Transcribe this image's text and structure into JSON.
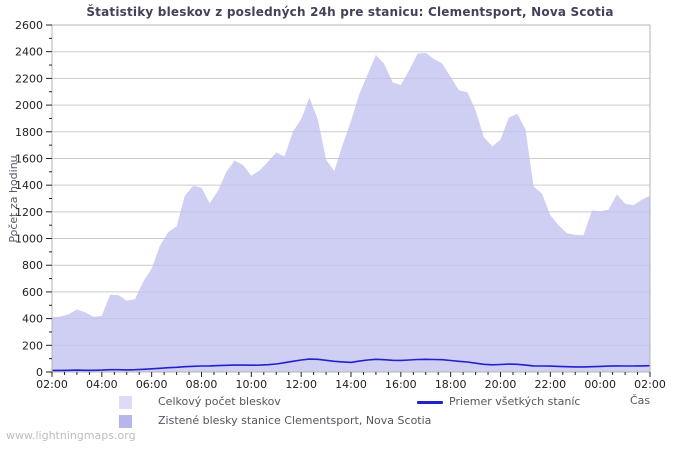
{
  "page": {
    "watermark": "www.lightningmaps.org"
  },
  "chart_data": {
    "type": "area",
    "title": "Štatistiky bleskov z posledných 24h pre stanicu: Clementsport, Nova Scotia",
    "xlabel": "Čas",
    "ylabel": "Počet za hodinu",
    "x_start_hour": 2,
    "x_end_hour": 26,
    "x_tick_labels": [
      "02:00",
      "04:00",
      "06:00",
      "08:00",
      "10:00",
      "12:00",
      "14:00",
      "16:00",
      "18:00",
      "20:00",
      "22:00",
      "00:00",
      "02:00"
    ],
    "ylim": [
      0,
      2600
    ],
    "y_major_step": 200,
    "y_minor_step": 100,
    "grid": true,
    "grid_color": "#cccccc",
    "border_color": "#b5b5b5",
    "tick_color": "#222222",
    "legend_position": "bottom",
    "x": [
      2,
      2.33,
      2.67,
      3,
      3.33,
      3.67,
      4,
      4.33,
      4.67,
      5,
      5.33,
      5.67,
      6,
      6.33,
      6.67,
      7,
      7.33,
      7.67,
      8,
      8.33,
      8.67,
      9,
      9.33,
      9.67,
      10,
      10.33,
      10.67,
      11,
      11.33,
      11.67,
      12,
      12.33,
      12.67,
      13,
      13.33,
      13.67,
      14,
      14.33,
      14.67,
      15,
      15.33,
      15.67,
      16,
      16.33,
      16.67,
      17,
      17.33,
      17.67,
      18,
      18.33,
      18.67,
      19,
      19.33,
      19.67,
      20,
      20.33,
      20.67,
      21,
      21.33,
      21.67,
      22,
      22.33,
      22.67,
      23,
      23.33,
      23.67,
      24,
      24.33,
      24.67,
      25,
      25.33,
      25.67,
      26
    ],
    "series": [
      {
        "name": "Celkový počet bleskov",
        "type": "area",
        "color": "#dcdcf7",
        "fill_opacity": 0.5,
        "values": [
          410,
          415,
          432,
          468,
          448,
          413,
          420,
          580,
          575,
          535,
          545,
          680,
          775,
          945,
          1050,
          1090,
          1320,
          1395,
          1380,
          1265,
          1360,
          1500,
          1585,
          1550,
          1470,
          1510,
          1575,
          1645,
          1615,
          1800,
          1895,
          2055,
          1890,
          1590,
          1505,
          1705,
          1880,
          2080,
          2230,
          2375,
          2310,
          2170,
          2150,
          2260,
          2385,
          2390,
          2345,
          2310,
          2210,
          2110,
          2095,
          1960,
          1760,
          1690,
          1740,
          1905,
          1935,
          1820,
          1390,
          1335,
          1175,
          1100,
          1040,
          1027,
          1025,
          1210,
          1205,
          1215,
          1330,
          1260,
          1250,
          1290,
          1320
        ]
      },
      {
        "name": "Zistené blesky stanice Clementsport, Nova Scotia",
        "type": "area",
        "color": "#b6b6ec",
        "fill_opacity": 0.55,
        "values": [
          410,
          415,
          432,
          468,
          448,
          413,
          420,
          580,
          575,
          535,
          545,
          680,
          775,
          945,
          1050,
          1090,
          1320,
          1395,
          1380,
          1265,
          1360,
          1500,
          1585,
          1550,
          1470,
          1510,
          1575,
          1645,
          1615,
          1800,
          1895,
          2055,
          1890,
          1590,
          1505,
          1705,
          1880,
          2080,
          2230,
          2375,
          2310,
          2170,
          2150,
          2260,
          2385,
          2390,
          2345,
          2310,
          2210,
          2110,
          2095,
          1960,
          1760,
          1690,
          1740,
          1905,
          1935,
          1820,
          1390,
          1335,
          1175,
          1100,
          1040,
          1027,
          1025,
          1210,
          1205,
          1215,
          1330,
          1260,
          1250,
          1290,
          1320
        ]
      },
      {
        "name": "Priemer všetkých staníc",
        "type": "line",
        "color": "#2222cc",
        "values": [
          12,
          12,
          13,
          14,
          13,
          13,
          14,
          17,
          17,
          16,
          17,
          20,
          24,
          28,
          32,
          35,
          40,
          43,
          45,
          46,
          48,
          50,
          52,
          52,
          51,
          52,
          55,
          60,
          70,
          80,
          90,
          97,
          95,
          88,
          80,
          76,
          72,
          82,
          90,
          95,
          92,
          88,
          87,
          90,
          94,
          95,
          94,
          92,
          86,
          80,
          75,
          66,
          58,
          54,
          56,
          59,
          58,
          52,
          46,
          45,
          44,
          42,
          40,
          38,
          38,
          40,
          42,
          44,
          46,
          45,
          45,
          46,
          47
        ]
      }
    ]
  }
}
